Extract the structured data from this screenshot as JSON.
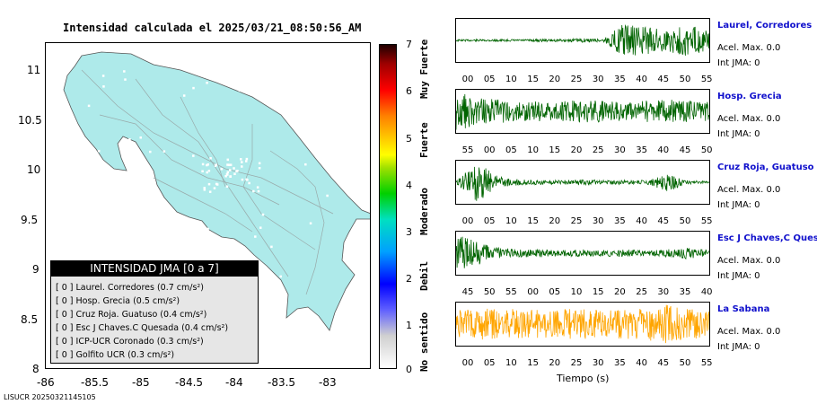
{
  "map": {
    "title": "Intensidad calculada el 2025/03/21_08:50:56_AM",
    "x_ticks": [
      "-86",
      "-85.5",
      "-85",
      "-84.5",
      "-84",
      "-83.5",
      "-83"
    ],
    "y_ticks": [
      "11",
      "10.5",
      "10",
      "9.5",
      "9",
      "8.5",
      "8"
    ],
    "stamp": "LISUCR 20250321145105",
    "land_color": "#aeeaea"
  },
  "legend": {
    "title": "INTENSIDAD JMA [0 a 7]",
    "items": [
      {
        "text": "[ 0 ]  Laurel. Corredores (0.7 cm/s²)"
      },
      {
        "text": "[ 0 ]  Hosp. Grecia (0.5 cm/s²)"
      },
      {
        "text": "[ 0 ]  Cruz Roja. Guatuso (0.4 cm/s²)"
      },
      {
        "text": "[ 0 ]  Esc J Chaves.C Quesada (0.4 cm/s²)"
      },
      {
        "text": "[ 0 ]  ICP-UCR Coronado (0.3 cm/s²)"
      },
      {
        "text": "[ 0 ]  Golfito UCR (0.3 cm/s²)"
      }
    ]
  },
  "colorbar": {
    "ticks": [
      "7",
      "6",
      "5",
      "4",
      "3",
      "2",
      "1",
      "0"
    ],
    "labels": [
      "Muy Fuerte",
      "Fuerte",
      "Moderado",
      "Debil",
      "No sentido"
    ]
  },
  "chart_data": [
    {
      "type": "line",
      "title": "Laurel, Corredores",
      "xlabel": "",
      "x_ticks": [
        "00",
        "05",
        "10",
        "15",
        "20",
        "25",
        "30",
        "35",
        "40",
        "45",
        "50",
        "55"
      ],
      "color": "#006400",
      "accel_label": "Acel. Max. 0.0",
      "int_label": "Int JMA: 0",
      "values": [
        0.05,
        0.05,
        0.06,
        0.05,
        0.07,
        0.06,
        0.1,
        0.08,
        0.9,
        0.7,
        0.6,
        0.8,
        0.5
      ],
      "x": [
        0,
        5,
        10,
        15,
        20,
        25,
        30,
        35,
        40,
        45,
        50,
        55,
        57
      ]
    },
    {
      "type": "line",
      "title": "Hosp. Grecia",
      "xlabel": "",
      "x_ticks": [
        "55",
        "00",
        "05",
        "10",
        "15",
        "20",
        "25",
        "30",
        "35",
        "40",
        "45",
        "50"
      ],
      "color": "#006400",
      "accel_label": "Acel. Max. 0.0",
      "int_label": "Int JMA: 0",
      "values": [
        1.0,
        0.7,
        0.6,
        0.5,
        0.55,
        0.5,
        0.6,
        0.55,
        0.5,
        0.55,
        0.6,
        0.55,
        0.5
      ],
      "x": [
        55,
        0,
        5,
        10,
        15,
        20,
        25,
        30,
        35,
        40,
        45,
        50,
        53
      ]
    },
    {
      "type": "line",
      "title": "Cruz Roja, Guatuso",
      "xlabel": "",
      "x_ticks": [
        "00",
        "05",
        "10",
        "15",
        "20",
        "25",
        "30",
        "35",
        "40",
        "45",
        "50",
        "55"
      ],
      "color": "#006400",
      "accel_label": "Acel. Max. 0.0",
      "int_label": "Int JMA: 0",
      "values": [
        0.1,
        1.0,
        0.3,
        0.15,
        0.12,
        0.1,
        0.15,
        0.1,
        0.12,
        0.1,
        0.45,
        0.1,
        0.05
      ],
      "x": [
        -3,
        3,
        8,
        13,
        18,
        23,
        28,
        33,
        38,
        43,
        48,
        53,
        56
      ]
    },
    {
      "type": "line",
      "title": "Esc J Chaves,C Quesada",
      "xlabel": "",
      "x_ticks": [
        "45",
        "50",
        "55",
        "00",
        "05",
        "10",
        "15",
        "20",
        "25",
        "30",
        "35",
        "40"
      ],
      "color": "#006400",
      "accel_label": "Acel. Max. 0.0",
      "int_label": "Int JMA: 0",
      "values": [
        1.0,
        0.6,
        0.3,
        0.2,
        0.2,
        0.15,
        0.2,
        0.15,
        0.2,
        0.15,
        0.2,
        0.3,
        0.15
      ],
      "x": [
        43,
        48,
        53,
        58,
        3,
        8,
        13,
        18,
        23,
        28,
        33,
        38,
        42
      ]
    },
    {
      "type": "line",
      "title": "La Sabana",
      "xlabel": "Tiempo (s)",
      "x_ticks": [
        "00",
        "05",
        "10",
        "15",
        "20",
        "25",
        "30",
        "35",
        "40",
        "45",
        "50",
        "55"
      ],
      "color": "#ffa500",
      "accel_label": "Acel. Max. 0.0",
      "int_label": "Int JMA: 0",
      "values": [
        0.7,
        0.8,
        0.75,
        0.8,
        0.7,
        0.75,
        0.8,
        0.7,
        0.75,
        0.8,
        1.0,
        0.75,
        0.7
      ],
      "x": [
        -3,
        2,
        7,
        12,
        17,
        22,
        27,
        32,
        37,
        42,
        47,
        52,
        56
      ]
    }
  ]
}
